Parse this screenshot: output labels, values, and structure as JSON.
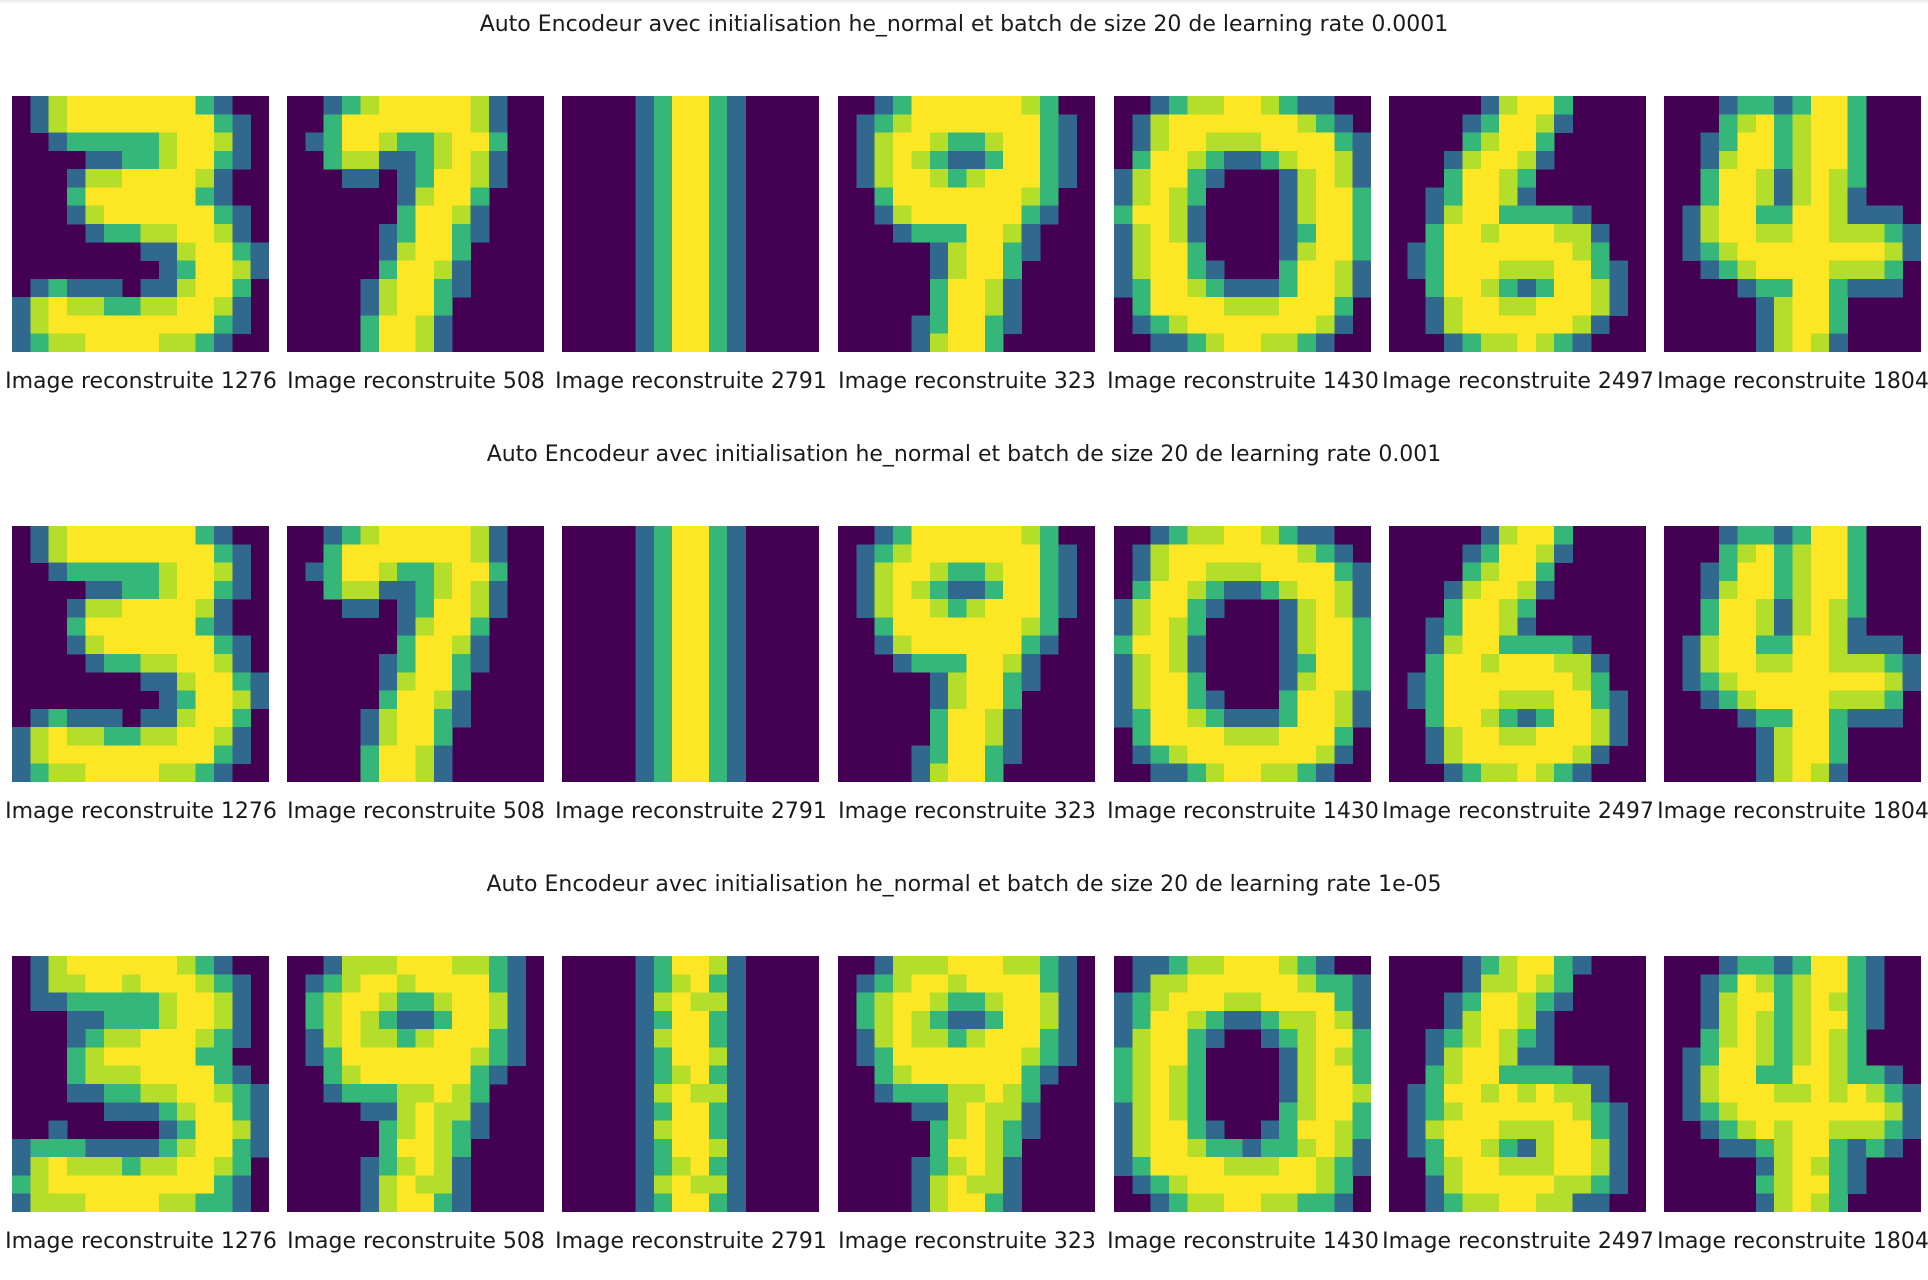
{
  "chart_data": [
    {
      "type": "image-grid",
      "title": "Auto Encodeur avec initialisation he_normal et batch de size 20 de learning rate 0.0001",
      "colormap": "viridis",
      "images": [
        {
          "caption": "Image reconstruite 1276",
          "digit": "3"
        },
        {
          "caption": "Image reconstruite 508",
          "digit": "7"
        },
        {
          "caption": "Image reconstruite 2791",
          "digit": "1"
        },
        {
          "caption": "Image reconstruite 323",
          "digit": "9"
        },
        {
          "caption": "Image reconstruite 1430",
          "digit": "0"
        },
        {
          "caption": "Image reconstruite 2497",
          "digit": "6"
        },
        {
          "caption": "Image reconstruite 1804",
          "digit": "4"
        }
      ]
    },
    {
      "type": "image-grid",
      "title": "Auto Encodeur avec initialisation he_normal et batch de size 20 de learning rate 0.001",
      "colormap": "viridis",
      "images": [
        {
          "caption": "Image reconstruite 1276",
          "digit": "3"
        },
        {
          "caption": "Image reconstruite 508",
          "digit": "7"
        },
        {
          "caption": "Image reconstruite 2791",
          "digit": "1"
        },
        {
          "caption": "Image reconstruite 323",
          "digit": "9"
        },
        {
          "caption": "Image reconstruite 1430",
          "digit": "0"
        },
        {
          "caption": "Image reconstruite 2497",
          "digit": "6"
        },
        {
          "caption": "Image reconstruite 1804",
          "digit": "4"
        }
      ]
    },
    {
      "type": "image-grid",
      "title": "Auto Encodeur avec initialisation he_normal et batch de size 20 de learning rate 1e-05",
      "colormap": "viridis",
      "images": [
        {
          "caption": "Image reconstruite 1276",
          "digit": "3"
        },
        {
          "caption": "Image reconstruite 508",
          "digit": "9"
        },
        {
          "caption": "Image reconstruite 2791",
          "digit": "1"
        },
        {
          "caption": "Image reconstruite 323",
          "digit": "9"
        },
        {
          "caption": "Image reconstruite 1430",
          "digit": "0"
        },
        {
          "caption": "Image reconstruite 2497",
          "digit": "6"
        },
        {
          "caption": "Image reconstruite 1804",
          "digit": "4"
        }
      ]
    }
  ],
  "colors": {
    "background": "#440154",
    "low": "#31688e",
    "mid": "#35b779",
    "high": "#b5de2b",
    "peak": "#fde725"
  }
}
